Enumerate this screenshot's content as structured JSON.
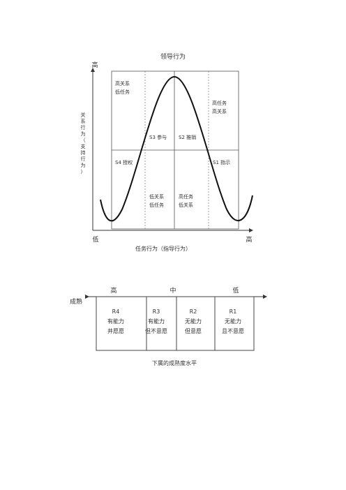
{
  "leadership": {
    "title": "领导行为",
    "y_axis": {
      "high": "高",
      "low": "低",
      "label_lines": [
        "关",
        "系",
        "行",
        "为",
        "（",
        "支",
        "持",
        "行",
        "为",
        "）"
      ]
    },
    "x_axis": {
      "high": "高",
      "label": "任务行为（指导行为）"
    },
    "quadrants": {
      "top_left": [
        "高关系",
        "低任务"
      ],
      "top_right": [
        "高任务",
        "高关系"
      ],
      "bottom_left_mid": [
        "低关系",
        "低任务"
      ],
      "bottom_right_mid": [
        "高任务",
        "低关系"
      ]
    },
    "styles": {
      "s1": "S1 指示",
      "s2": "S2 推销",
      "s3": "S3 参与",
      "s4": "S4 授权"
    }
  },
  "maturity": {
    "left_label": "成熟",
    "scale": {
      "high": "高",
      "mid": "中",
      "low": "低"
    },
    "levels": [
      {
        "code": "R4",
        "lines": [
          "有能力",
          "并愿愿"
        ]
      },
      {
        "code": "R3",
        "lines": [
          "有能力",
          "但不意愿"
        ]
      },
      {
        "code": "R2",
        "lines": [
          "无能力",
          "但意愿"
        ]
      },
      {
        "code": "R1",
        "lines": [
          "无能力",
          "且不意愿"
        ]
      }
    ],
    "caption": "下属的成熟度水平"
  }
}
